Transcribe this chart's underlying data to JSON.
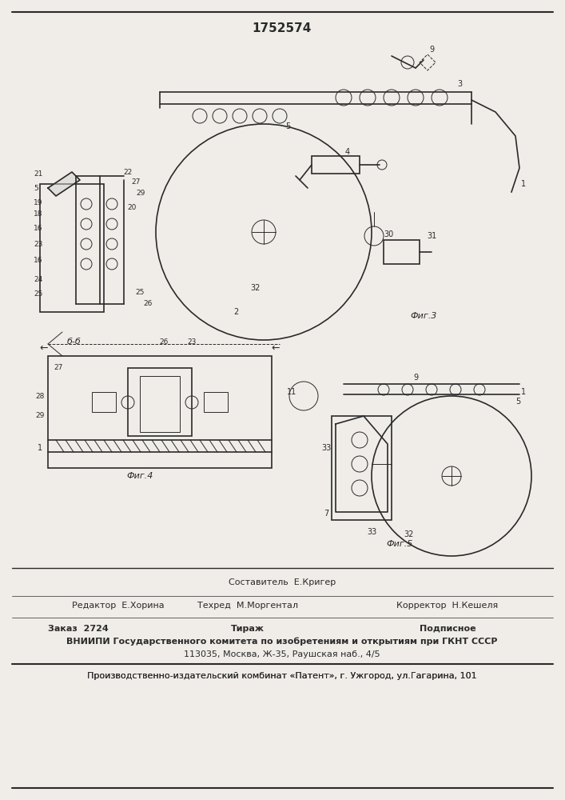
{
  "patent_number": "1752574",
  "background_color": "#f0ede8",
  "line_color": "#2a2a2a",
  "title_fontsize": 11,
  "footer_lines": [
    {
      "left": "Редактор  Е.Хорина",
      "center": "Техред  М.Моргентал",
      "right": "Корректор  Н.Кешеля"
    },
    {
      "left": "Заказ  2724",
      "center": "Тираж",
      "right": "Подписное"
    },
    {
      "center": "ВНИИПИ Государственного комитета по изобретениям и открытиям при ГКНТ СССР"
    },
    {
      "center": "113035, Москва, Ж-35, Раушская наб., 4/5"
    },
    {
      "center": "Производственно-издательский комбинат «Патент», г. Ужгород, ул.Гагарина, 101"
    }
  ],
  "sestavitel": "Составитель  Е.Кригер",
  "fig_labels": [
    "Фиг.3",
    "Фиг.4",
    "Фиг.5"
  ],
  "fig_label_bb": "б-б"
}
